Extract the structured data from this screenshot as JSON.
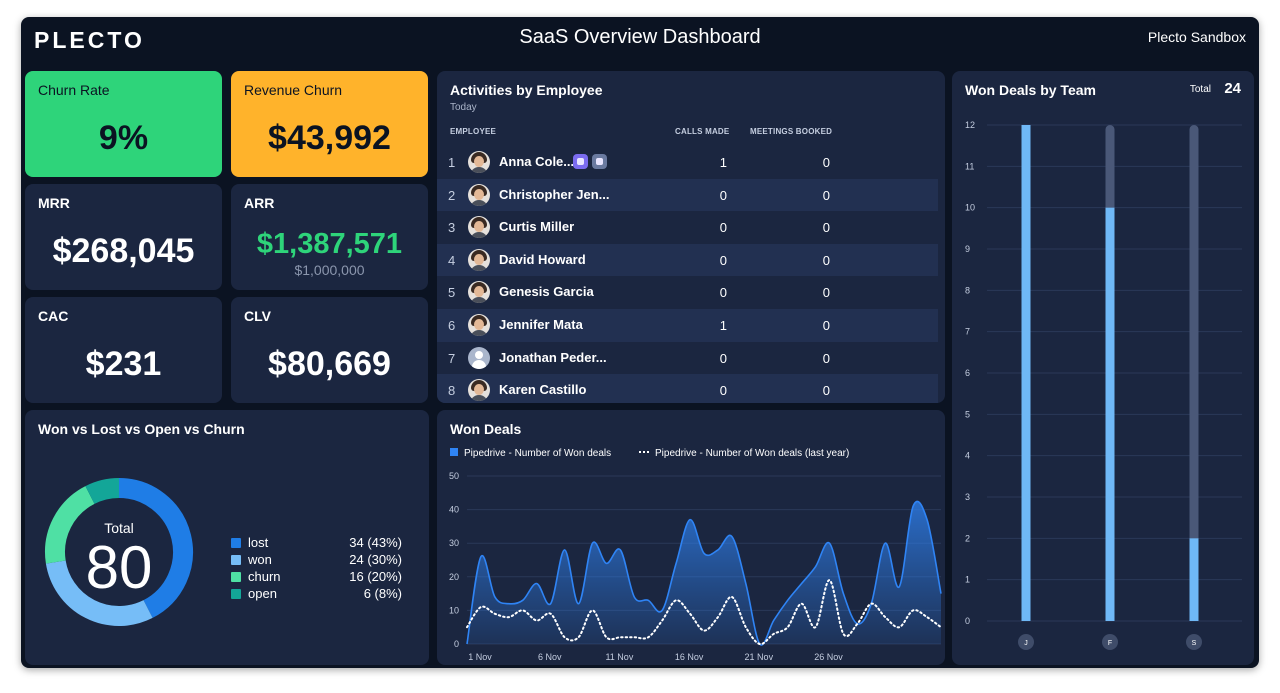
{
  "header": {
    "logo": "PLECTO",
    "title": "SaaS Overview Dashboard",
    "account": "Plecto Sandbox"
  },
  "kpis": {
    "churn_rate": {
      "label": "Churn Rate",
      "value": "9%",
      "color": "#2ed47a"
    },
    "revenue_churn": {
      "label": "Revenue Churn",
      "value": "$43,992",
      "color": "#ffb32b"
    },
    "mrr": {
      "label": "MRR",
      "value": "$268,045"
    },
    "arr": {
      "label": "ARR",
      "value": "$1,387,571",
      "target": "$1,000,000",
      "color": "#2ed47a"
    },
    "cac": {
      "label": "CAC",
      "value": "$231"
    },
    "clv": {
      "label": "CLV",
      "value": "$80,669"
    }
  },
  "activities": {
    "title": "Activities by Employee",
    "subtitle": "Today",
    "columns": {
      "employee": "EMPLOYEE",
      "calls": "CALLS MADE",
      "meetings": "MEETINGS BOOKED"
    },
    "rows": [
      {
        "rank": "1",
        "name": "Anna Cole...",
        "calls": "1",
        "meetings": "0",
        "badges": true
      },
      {
        "rank": "2",
        "name": "Christopher Jen...",
        "calls": "0",
        "meetings": "0"
      },
      {
        "rank": "3",
        "name": "Curtis Miller",
        "calls": "0",
        "meetings": "0"
      },
      {
        "rank": "4",
        "name": "David Howard",
        "calls": "0",
        "meetings": "0"
      },
      {
        "rank": "5",
        "name": "Genesis Garcia",
        "calls": "0",
        "meetings": "0"
      },
      {
        "rank": "6",
        "name": "Jennifer Mata",
        "calls": "1",
        "meetings": "0"
      },
      {
        "rank": "7",
        "name": "Jonathan Peder...",
        "calls": "0",
        "meetings": "0",
        "generic": true
      },
      {
        "rank": "8",
        "name": "Karen Castillo",
        "calls": "0",
        "meetings": "0"
      }
    ]
  },
  "donut": {
    "title": "Won vs Lost vs Open vs Churn",
    "center_label": "Total",
    "center_value": "80",
    "segments": [
      {
        "label": "lost",
        "value": 34,
        "display": "34 (43%)",
        "color": "#1f7de6"
      },
      {
        "label": "won",
        "value": 24,
        "display": "24 (30%)",
        "color": "#76bdf7"
      },
      {
        "label": "churn",
        "value": 16,
        "display": "16 (20%)",
        "color": "#4fe0a4"
      },
      {
        "label": "open",
        "value": 6,
        "display": "6 (8%)",
        "color": "#13a698"
      }
    ]
  },
  "chart_data": [
    {
      "type": "area",
      "title": "Won Deals",
      "series": [
        {
          "name": "Pipedrive - Number of Won deals",
          "color": "#2f84f5",
          "values": [
            0,
            26,
            14,
            12,
            13,
            18,
            12,
            28,
            12,
            30,
            24,
            28,
            14,
            13,
            10,
            24,
            37,
            27,
            28,
            32,
            18,
            0,
            7,
            13,
            18,
            23,
            30,
            15,
            6,
            12,
            30,
            17,
            41,
            37,
            15
          ]
        },
        {
          "name": "Pipedrive - Number of Won deals (last year)",
          "color": "#ffffff",
          "values": [
            5,
            11,
            9,
            8,
            10,
            7,
            9,
            2,
            2,
            10,
            2,
            2,
            2,
            2,
            7,
            13,
            9,
            4,
            8,
            14,
            5,
            0,
            3,
            5,
            12,
            5,
            19,
            3,
            6,
            12,
            8,
            5,
            10,
            8,
            5
          ]
        }
      ],
      "x_labels": [
        "1 Nov",
        "6 Nov",
        "11 Nov",
        "16 Nov",
        "21 Nov",
        "26 Nov"
      ],
      "y_ticks": [
        0,
        10,
        20,
        30,
        40,
        50
      ],
      "ylim": [
        0,
        50
      ],
      "grid": true,
      "legend": "top-left"
    },
    {
      "type": "bar",
      "title": "Won Deals by Team",
      "total_label": "Total",
      "total_value": "24",
      "categories": [
        "J",
        "F",
        "S"
      ],
      "values": [
        12,
        10,
        2
      ],
      "ylim": [
        0,
        12
      ],
      "y_ticks": [
        0,
        1,
        2,
        3,
        4,
        5,
        6,
        7,
        8,
        9,
        10,
        11,
        12
      ],
      "grid": true,
      "fill_color": "#6fb8f6",
      "track_color": "#4a5878"
    }
  ]
}
